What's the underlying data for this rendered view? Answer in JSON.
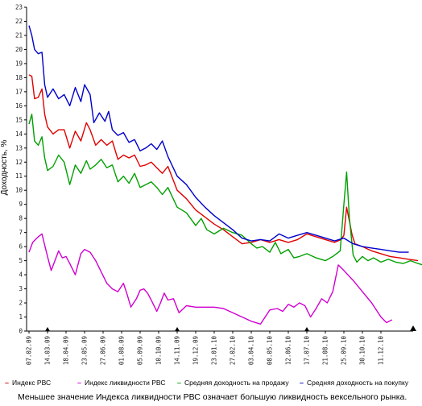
{
  "chart_data": {
    "type": "line",
    "ylabel": "Доходность, %",
    "ylim": [
      0,
      23
    ],
    "y_ticks": [
      0,
      1,
      2,
      3,
      4,
      5,
      6,
      7,
      8,
      9,
      10,
      11,
      12,
      13,
      14,
      15,
      16,
      17,
      18,
      19,
      20,
      21,
      22,
      23
    ],
    "x_tick_labels": [
      "07.02.09",
      "14.03.09",
      "18.04.09",
      "23.05.09",
      "27.06.09",
      "01.08.09",
      "05.09.09",
      "10.10.09",
      "14.11.09",
      "19.12.09",
      "23.01.10",
      "27.02.10",
      "03.04.10",
      "08.05.10",
      "12.06.10",
      "17.07.10",
      "21.08.10",
      "25.09.10",
      "30.10.10",
      "11.12.10"
    ],
    "grid": false,
    "legend_position": "bottom",
    "series": [
      {
        "name": "Индекс РВС",
        "color": "#e00000",
        "points": [
          [
            0,
            18.2
          ],
          [
            0.15,
            18.1
          ],
          [
            0.3,
            16.5
          ],
          [
            0.5,
            16.6
          ],
          [
            0.7,
            17.2
          ],
          [
            0.85,
            15.4
          ],
          [
            1.0,
            14.5
          ],
          [
            1.3,
            14.0
          ],
          [
            1.6,
            14.3
          ],
          [
            1.9,
            14.3
          ],
          [
            2.2,
            13.0
          ],
          [
            2.5,
            14.2
          ],
          [
            2.8,
            13.5
          ],
          [
            3.1,
            14.8
          ],
          [
            3.3,
            14.3
          ],
          [
            3.6,
            13.2
          ],
          [
            3.9,
            13.6
          ],
          [
            4.2,
            13.2
          ],
          [
            4.5,
            13.5
          ],
          [
            4.8,
            12.2
          ],
          [
            5.1,
            12.5
          ],
          [
            5.4,
            12.3
          ],
          [
            5.7,
            12.5
          ],
          [
            6.0,
            11.7
          ],
          [
            6.3,
            11.8
          ],
          [
            6.6,
            12.0
          ],
          [
            6.9,
            11.6
          ],
          [
            7.2,
            11.2
          ],
          [
            7.5,
            11.7
          ],
          [
            8.0,
            10.0
          ],
          [
            8.5,
            9.4
          ],
          [
            9.0,
            8.6
          ],
          [
            9.5,
            8.1
          ],
          [
            10.0,
            7.6
          ],
          [
            10.5,
            7.2
          ],
          [
            11.0,
            6.7
          ],
          [
            11.5,
            6.2
          ],
          [
            12.0,
            6.3
          ],
          [
            12.5,
            6.5
          ],
          [
            13.0,
            6.3
          ],
          [
            13.5,
            6.5
          ],
          [
            14.0,
            6.3
          ],
          [
            14.5,
            6.5
          ],
          [
            15.0,
            6.9
          ],
          [
            15.5,
            6.7
          ],
          [
            16.0,
            6.5
          ],
          [
            16.5,
            6.3
          ],
          [
            16.85,
            6.5
          ],
          [
            17.0,
            6.8
          ],
          [
            17.15,
            8.8
          ],
          [
            17.3,
            7.8
          ],
          [
            17.45,
            6.8
          ],
          [
            17.6,
            6.2
          ],
          [
            18.0,
            6.0
          ],
          [
            18.5,
            5.7
          ],
          [
            19.0,
            5.5
          ],
          [
            19.5,
            5.3
          ],
          [
            20.0,
            5.2
          ],
          [
            20.5,
            5.1
          ],
          [
            21.0,
            5.0
          ]
        ]
      },
      {
        "name": "Индекс ликвидности РВС",
        "color": "#d000d0",
        "points": [
          [
            0,
            5.6
          ],
          [
            0.2,
            6.3
          ],
          [
            0.5,
            6.7
          ],
          [
            0.7,
            6.9
          ],
          [
            1.0,
            5.3
          ],
          [
            1.2,
            4.3
          ],
          [
            1.4,
            5.0
          ],
          [
            1.6,
            5.7
          ],
          [
            1.8,
            5.2
          ],
          [
            2.0,
            5.3
          ],
          [
            2.2,
            4.8
          ],
          [
            2.5,
            4.0
          ],
          [
            2.8,
            5.5
          ],
          [
            3.0,
            5.8
          ],
          [
            3.3,
            5.6
          ],
          [
            3.6,
            5.0
          ],
          [
            3.9,
            4.2
          ],
          [
            4.2,
            3.4
          ],
          [
            4.5,
            3.0
          ],
          [
            4.8,
            2.8
          ],
          [
            5.1,
            3.4
          ],
          [
            5.3,
            2.6
          ],
          [
            5.5,
            1.7
          ],
          [
            5.8,
            2.3
          ],
          [
            6.0,
            2.9
          ],
          [
            6.2,
            3.0
          ],
          [
            6.4,
            2.7
          ],
          [
            6.6,
            2.2
          ],
          [
            6.9,
            1.4
          ],
          [
            7.1,
            2.0
          ],
          [
            7.3,
            2.7
          ],
          [
            7.5,
            2.2
          ],
          [
            7.8,
            2.3
          ],
          [
            8.1,
            1.3
          ],
          [
            8.5,
            1.8
          ],
          [
            9.0,
            1.7
          ],
          [
            9.5,
            1.7
          ],
          [
            10.0,
            1.7
          ],
          [
            10.5,
            1.6
          ],
          [
            11.0,
            1.3
          ],
          [
            11.5,
            1.0
          ],
          [
            12.0,
            0.7
          ],
          [
            12.5,
            0.5
          ],
          [
            13.0,
            1.5
          ],
          [
            13.4,
            1.6
          ],
          [
            13.7,
            1.4
          ],
          [
            14.0,
            1.9
          ],
          [
            14.3,
            1.7
          ],
          [
            14.6,
            2.0
          ],
          [
            14.9,
            1.8
          ],
          [
            15.2,
            1.0
          ],
          [
            15.5,
            1.6
          ],
          [
            15.8,
            2.3
          ],
          [
            16.1,
            2.0
          ],
          [
            16.4,
            2.8
          ],
          [
            16.7,
            4.7
          ],
          [
            17.0,
            4.3
          ],
          [
            17.5,
            3.6
          ],
          [
            18.0,
            2.8
          ],
          [
            18.5,
            2.0
          ],
          [
            19.0,
            1.0
          ],
          [
            19.3,
            0.6
          ],
          [
            19.6,
            0.8
          ]
        ]
      },
      {
        "name": "Средняя доходность на продажу",
        "color": "#00a000",
        "points": [
          [
            0,
            14.7
          ],
          [
            0.15,
            15.4
          ],
          [
            0.3,
            13.5
          ],
          [
            0.5,
            13.2
          ],
          [
            0.7,
            13.8
          ],
          [
            0.85,
            12.3
          ],
          [
            1.0,
            11.4
          ],
          [
            1.3,
            11.7
          ],
          [
            1.6,
            12.5
          ],
          [
            1.9,
            12.0
          ],
          [
            2.2,
            10.4
          ],
          [
            2.5,
            11.8
          ],
          [
            2.8,
            11.2
          ],
          [
            3.1,
            12.1
          ],
          [
            3.3,
            11.5
          ],
          [
            3.6,
            11.8
          ],
          [
            3.9,
            12.2
          ],
          [
            4.2,
            11.6
          ],
          [
            4.5,
            11.8
          ],
          [
            4.8,
            10.6
          ],
          [
            5.1,
            11.0
          ],
          [
            5.4,
            10.5
          ],
          [
            5.7,
            11.2
          ],
          [
            6.0,
            10.2
          ],
          [
            6.3,
            10.4
          ],
          [
            6.6,
            10.6
          ],
          [
            6.9,
            10.2
          ],
          [
            7.2,
            9.7
          ],
          [
            7.5,
            10.2
          ],
          [
            8.0,
            8.8
          ],
          [
            8.5,
            8.4
          ],
          [
            9.0,
            7.5
          ],
          [
            9.3,
            8.0
          ],
          [
            9.6,
            7.2
          ],
          [
            10.0,
            6.9
          ],
          [
            10.5,
            7.3
          ],
          [
            11.0,
            7.0
          ],
          [
            11.5,
            6.8
          ],
          [
            12.0,
            6.2
          ],
          [
            12.3,
            5.9
          ],
          [
            12.6,
            6.0
          ],
          [
            13.0,
            5.6
          ],
          [
            13.3,
            6.3
          ],
          [
            13.6,
            5.5
          ],
          [
            14.0,
            5.8
          ],
          [
            14.3,
            5.2
          ],
          [
            14.6,
            5.3
          ],
          [
            15.0,
            5.5
          ],
          [
            15.5,
            5.2
          ],
          [
            16.0,
            5.0
          ],
          [
            16.4,
            5.3
          ],
          [
            16.8,
            5.7
          ],
          [
            17.0,
            9.0
          ],
          [
            17.15,
            11.3
          ],
          [
            17.3,
            8.0
          ],
          [
            17.5,
            5.4
          ],
          [
            17.7,
            4.9
          ],
          [
            18.0,
            5.3
          ],
          [
            18.3,
            5.0
          ],
          [
            18.6,
            5.2
          ],
          [
            19.0,
            4.9
          ],
          [
            19.4,
            5.1
          ],
          [
            19.8,
            4.9
          ],
          [
            20.2,
            4.8
          ],
          [
            20.6,
            5.0
          ],
          [
            21.0,
            4.8
          ],
          [
            21.5,
            4.6
          ],
          [
            22.0,
            4.9
          ],
          [
            22.2,
            5.5
          ]
        ]
      },
      {
        "name": "Средняя доходность на покупку",
        "color": "#0000cc",
        "points": [
          [
            0,
            21.7
          ],
          [
            0.15,
            21.0
          ],
          [
            0.3,
            20.0
          ],
          [
            0.5,
            19.7
          ],
          [
            0.7,
            19.8
          ],
          [
            0.85,
            17.5
          ],
          [
            1.0,
            16.6
          ],
          [
            1.3,
            17.2
          ],
          [
            1.6,
            16.5
          ],
          [
            1.9,
            16.8
          ],
          [
            2.2,
            16.0
          ],
          [
            2.5,
            17.3
          ],
          [
            2.8,
            16.3
          ],
          [
            3.0,
            17.5
          ],
          [
            3.3,
            16.8
          ],
          [
            3.5,
            14.8
          ],
          [
            3.8,
            15.5
          ],
          [
            4.1,
            14.9
          ],
          [
            4.3,
            15.6
          ],
          [
            4.5,
            14.3
          ],
          [
            4.8,
            13.9
          ],
          [
            5.1,
            14.1
          ],
          [
            5.4,
            13.4
          ],
          [
            5.7,
            13.6
          ],
          [
            6.0,
            12.8
          ],
          [
            6.3,
            13.0
          ],
          [
            6.6,
            13.3
          ],
          [
            6.9,
            12.9
          ],
          [
            7.2,
            13.5
          ],
          [
            7.5,
            12.4
          ],
          [
            8.0,
            11.0
          ],
          [
            8.5,
            10.4
          ],
          [
            9.0,
            9.5
          ],
          [
            9.5,
            8.8
          ],
          [
            10.0,
            8.2
          ],
          [
            10.5,
            7.7
          ],
          [
            11.0,
            7.2
          ],
          [
            11.5,
            6.6
          ],
          [
            12.0,
            6.4
          ],
          [
            12.5,
            6.5
          ],
          [
            13.0,
            6.4
          ],
          [
            13.5,
            6.9
          ],
          [
            14.0,
            6.6
          ],
          [
            14.5,
            6.8
          ],
          [
            15.0,
            7.0
          ],
          [
            15.5,
            6.8
          ],
          [
            16.0,
            6.6
          ],
          [
            16.5,
            6.4
          ],
          [
            17.0,
            6.6
          ],
          [
            17.5,
            6.2
          ],
          [
            18.0,
            6.0
          ],
          [
            18.5,
            5.9
          ],
          [
            19.0,
            5.8
          ],
          [
            19.5,
            5.7
          ],
          [
            20.0,
            5.6
          ],
          [
            20.5,
            5.6
          ]
        ]
      }
    ]
  },
  "legend": {
    "marker": "–",
    "items": [
      {
        "label": "Индекс РВС",
        "color": "#e00000"
      },
      {
        "label": "Индекс ликвидности РВС",
        "color": "#d000d0"
      },
      {
        "label": "Средняя доходность на продажу",
        "color": "#00a000"
      },
      {
        "label": "Средняя доходность на покупку",
        "color": "#0000cc"
      }
    ]
  },
  "note": "Меньшее значение Индекса ликвидности РВС означает большую ликвидность вексельного рынка."
}
